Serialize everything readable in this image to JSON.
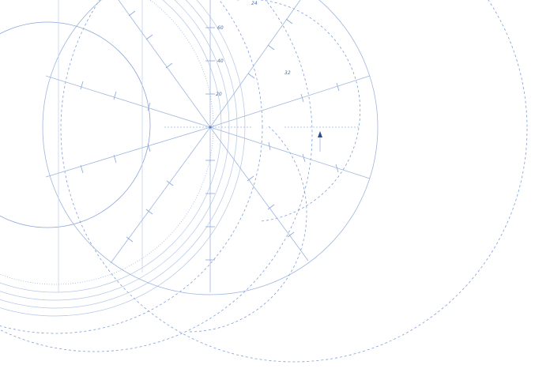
{
  "diagram": {
    "labels": {
      "tick_60": "60",
      "tick_40": "40",
      "tick_20": "20",
      "tick_24": "24",
      "tick_32": "32"
    },
    "colors": {
      "line": "#9fb6df",
      "line_light": "#c7d5ee",
      "dash": "#7f9ed8",
      "accent": "#2d4f9a"
    }
  }
}
